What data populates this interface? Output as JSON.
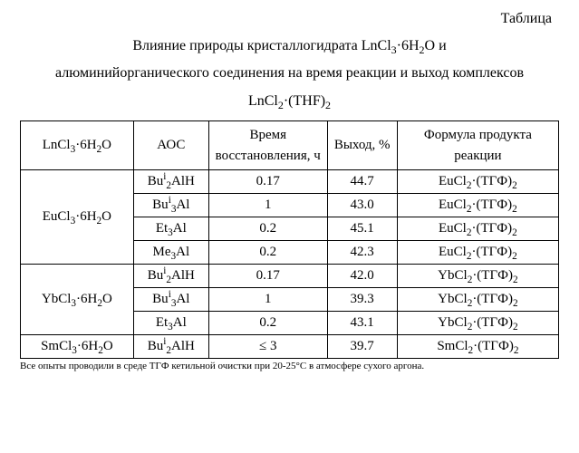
{
  "label": "Таблица",
  "caption": {
    "line1": "Влияние природы кристаллогидрата LnCl₃·6H₂O и",
    "line2": "алюминийорганического соединения на время реакции и выход комплексов",
    "line3": "LnCl₂·(THF)₂"
  },
  "headers": {
    "col1": "LnCl₃·6H₂O",
    "col2": "АОС",
    "col3": "Время восстановления, ч",
    "col4": "Выход, %",
    "col5": "Формула продукта реакции"
  },
  "groups": [
    {
      "compound": "EuCl₃·6H₂O",
      "rows": [
        {
          "aoc": "Buⁱ₂AlH",
          "time": "0.17",
          "yield": "44.7",
          "product": "EuCl₂·(ТГФ)₂"
        },
        {
          "aoc": "Buⁱ₃Al",
          "time": "1",
          "yield": "43.0",
          "product": "EuCl₂·(ТГФ)₂"
        },
        {
          "aoc": "Et₃Al",
          "time": "0.2",
          "yield": "45.1",
          "product": "EuCl₂·(ТГФ)₂"
        },
        {
          "aoc": "Me₃Al",
          "time": "0.2",
          "yield": "42.3",
          "product": "EuCl₂·(ТГФ)₂"
        }
      ]
    },
    {
      "compound": "YbCl₃·6H₂O",
      "rows": [
        {
          "aoc": "Buⁱ₂AlH",
          "time": "0.17",
          "yield": "42.0",
          "product": "YbCl₂·(ТГФ)₂"
        },
        {
          "aoc": "Buⁱ₃Al",
          "time": "1",
          "yield": "39.3",
          "product": "YbCl₂·(ТГФ)₂"
        },
        {
          "aoc": "Et₃Al",
          "time": "0.2",
          "yield": "43.1",
          "product": "YbCl₂·(ТГФ)₂"
        }
      ]
    },
    {
      "compound": "SmCl₃·6H₂O",
      "rows": [
        {
          "aoc": "Buⁱ₂AlH",
          "time": "≤ 3",
          "yield": "39.7",
          "product": "SmCl₂·(ТГФ)₂"
        }
      ]
    }
  ],
  "footnote": "Все опыты проводили в среде ТГФ кетильной очистки при 20-25°С в атмосфере сухого аргона.",
  "style": {
    "background_color": "#ffffff",
    "text_color": "#000000",
    "border_color": "#000000",
    "font_family": "Times New Roman",
    "base_fontsize_pt": 12,
    "footnote_fontsize_pt": 8,
    "column_widths_pct": [
      21,
      14,
      22,
      13,
      30
    ]
  }
}
